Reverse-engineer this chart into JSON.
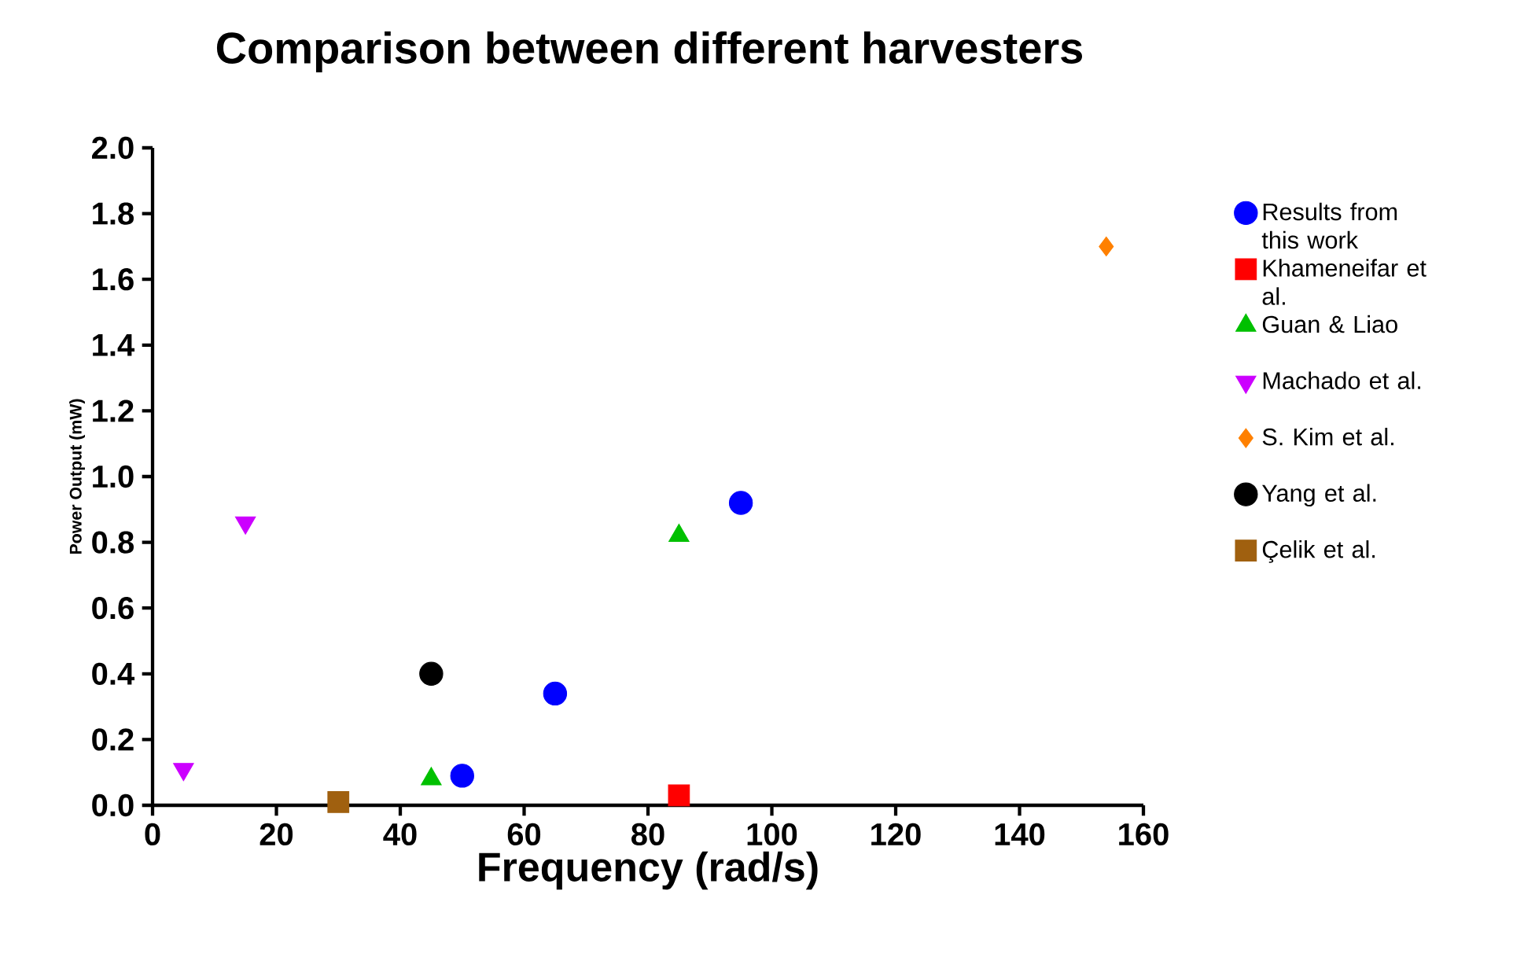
{
  "chart_data": {
    "type": "scatter",
    "title": "Comparison between different harvesters",
    "xlabel": "Frequency (rad/s)",
    "ylabel": "Power Output (mW)",
    "xlim": [
      0,
      160
    ],
    "xticks": [
      0,
      20,
      40,
      60,
      80,
      100,
      120,
      140,
      160
    ],
    "ylim": [
      0,
      2.0
    ],
    "yticks": [
      {
        "value": 0,
        "label": "0.0"
      },
      0.2,
      0.4,
      0.6,
      0.8,
      {
        "value": 1,
        "label": "1.0"
      },
      1.2,
      1.4,
      1.6,
      1.8,
      {
        "value": 2,
        "label": "2.0"
      }
    ],
    "grid": false,
    "legend": "right",
    "series": [
      {
        "name": "Results from this work",
        "color": "#0000ff",
        "marker": "circle",
        "x": [
          50,
          65,
          95
        ],
        "values": [
          0.09,
          0.34,
          0.92
        ]
      },
      {
        "name": "Khameneifar et al.",
        "color": "#ff0000",
        "marker": "square",
        "x": [
          85
        ],
        "values": [
          0.03
        ]
      },
      {
        "name": "Guan & Liao",
        "color": "#00c000",
        "marker": "triangle",
        "x": [
          45,
          85
        ],
        "values": [
          0.08,
          0.82
        ]
      },
      {
        "name": "Machado et al.",
        "color": "#cc00ff",
        "marker": "triangle-down",
        "x": [
          5,
          15
        ],
        "values": [
          0.11,
          0.86
        ]
      },
      {
        "name": "S. Kim et al.",
        "color": "#ff8000",
        "marker": "diamond",
        "x": [
          154
        ],
        "values": [
          1.7
        ]
      },
      {
        "name": "Yang et al.",
        "color": "#000000",
        "marker": "circle",
        "x": [
          45
        ],
        "values": [
          0.4
        ]
      },
      {
        "name": "Çelik et al.",
        "color": "#a0600f",
        "marker": "square",
        "x": [
          30
        ],
        "values": [
          0.01
        ]
      }
    ]
  }
}
